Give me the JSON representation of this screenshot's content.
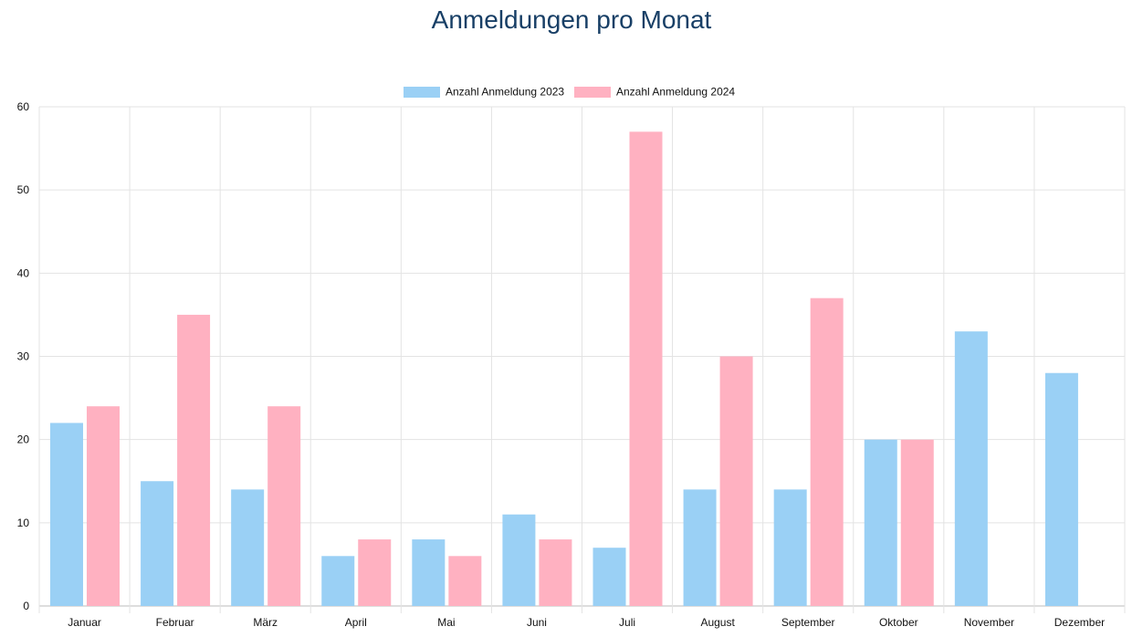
{
  "chart_data": {
    "type": "bar",
    "title": "Anmeldungen pro Monat",
    "xlabel": "",
    "ylabel": "",
    "ylim": [
      0,
      60
    ],
    "yticks": [
      0,
      10,
      20,
      30,
      40,
      50,
      60
    ],
    "grid": true,
    "legend_position": "top-center",
    "categories": [
      "Januar",
      "Februar",
      "März",
      "April",
      "Mai",
      "Juni",
      "Juli",
      "August",
      "September",
      "Oktober",
      "November",
      "Dezember"
    ],
    "series": [
      {
        "name": "Anzahl Anmeldung 2023",
        "color": "#9ad0f5",
        "values": [
          22,
          15,
          14,
          6,
          8,
          11,
          7,
          14,
          14,
          20,
          33,
          28
        ]
      },
      {
        "name": "Anzahl Anmeldung 2024",
        "color": "#ffb1c1",
        "values": [
          24,
          35,
          24,
          8,
          6,
          8,
          57,
          30,
          37,
          20,
          null,
          null
        ]
      }
    ]
  }
}
